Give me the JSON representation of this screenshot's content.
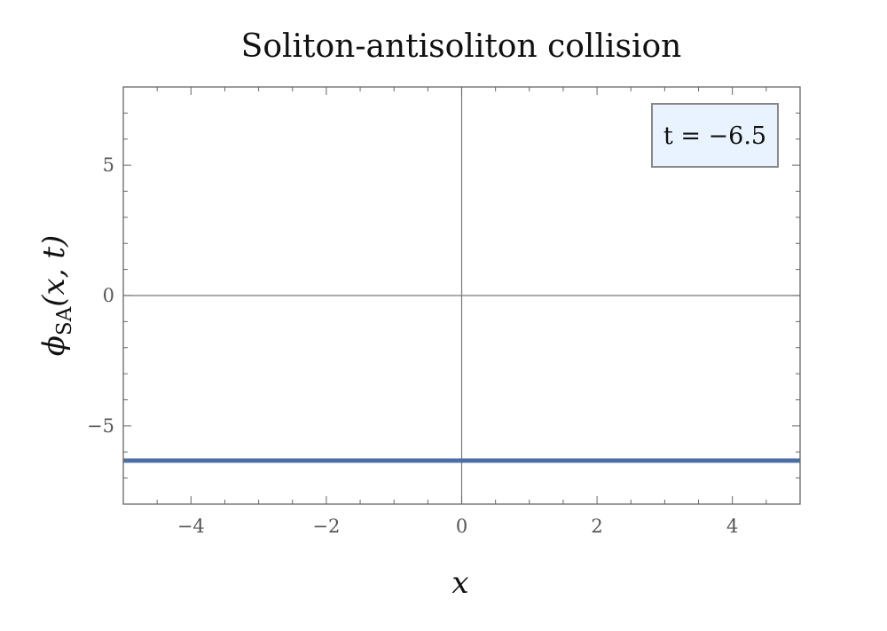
{
  "chart_data": {
    "type": "line",
    "title": "Soliton-antisoliton collision",
    "xlabel": "x",
    "ylabel": {
      "symbol": "ϕ",
      "subscript": "SA",
      "args": "(x, t)"
    },
    "xlim": [
      -5,
      5
    ],
    "ylim": [
      -8,
      8
    ],
    "x_ticks": [
      -4,
      -2,
      0,
      2,
      4
    ],
    "x_tick_labels": [
      "−4",
      "−2",
      "0",
      "2",
      "4"
    ],
    "y_ticks": [
      -5,
      0,
      5
    ],
    "y_tick_labels": [
      "−5",
      "0",
      "5"
    ],
    "grid": false,
    "legend": {
      "placement": "top-right",
      "text": "t = −6.5"
    },
    "series": [
      {
        "x": [
          -5,
          -2.5,
          0,
          2.5,
          5
        ],
        "y": [
          -6.33,
          -6.33,
          -6.33,
          -6.33,
          -6.33
        ],
        "color": "#4a6fa5"
      }
    ],
    "colors": {
      "frame": "#666666",
      "zero_lines": "#777777",
      "legend_fill": "#e8f3ff",
      "legend_border": "#888888"
    }
  }
}
